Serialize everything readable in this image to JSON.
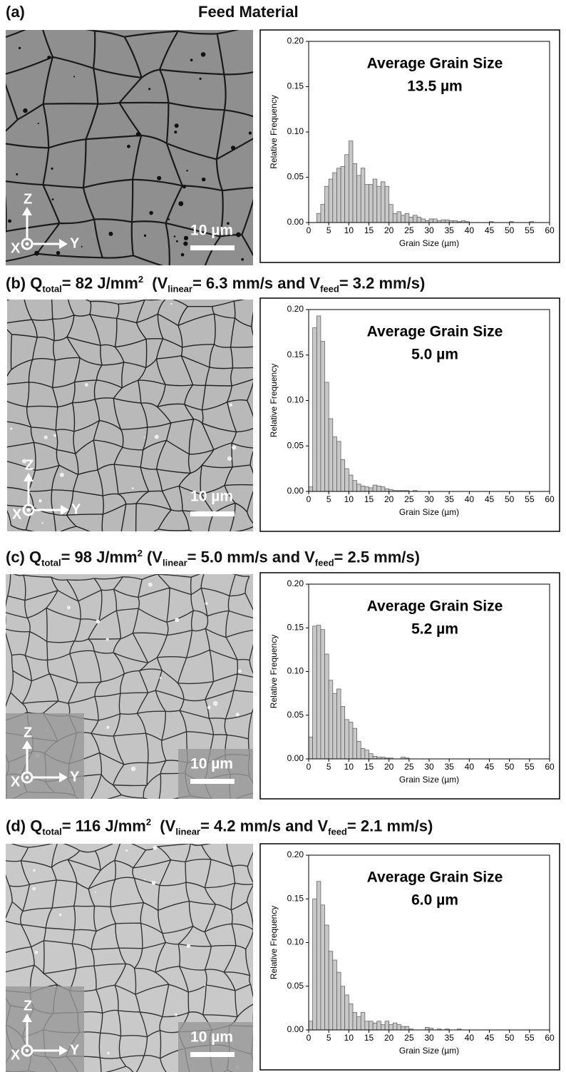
{
  "panels": [
    {
      "label": "(a)",
      "title": "Feed Material",
      "micrograph": {
        "axes": [
          "Z",
          "X",
          "Y"
        ],
        "scale_bar": "10 µm"
      }
    },
    {
      "label": "(b)",
      "heading": [
        {
          "text": "Q"
        },
        {
          "text": "total",
          "sub": true
        },
        {
          "text": "= 82 J/mm"
        },
        {
          "text": "2",
          "sup": true
        },
        {
          "text": "  (V"
        },
        {
          "text": "linear",
          "sub": true
        },
        {
          "text": "= 6.3 mm/s and V"
        },
        {
          "text": "feed",
          "sub": true
        },
        {
          "text": "= 3.2 mm/s)"
        }
      ],
      "micrograph": {
        "axes": [
          "Z",
          "X",
          "Y"
        ],
        "scale_bar": "10 µm"
      }
    },
    {
      "label": "(c)",
      "heading": [
        {
          "text": "Q"
        },
        {
          "text": "total",
          "sub": true
        },
        {
          "text": "= 98 J/mm"
        },
        {
          "text": "2",
          "sup": true
        },
        {
          "text": " (V"
        },
        {
          "text": "linear",
          "sub": true
        },
        {
          "text": "= 5.0 mm/s and V"
        },
        {
          "text": "feed",
          "sub": true
        },
        {
          "text": "= 2.5 mm/s)"
        }
      ],
      "micrograph": {
        "axes": [
          "Z",
          "X",
          "Y"
        ],
        "scale_bar": "10 µm"
      }
    },
    {
      "label": "(d)",
      "heading": [
        {
          "text": "Q"
        },
        {
          "text": "total",
          "sub": true
        },
        {
          "text": "= 116 J/mm"
        },
        {
          "text": "2",
          "sup": true
        },
        {
          "text": "  (V"
        },
        {
          "text": "linear",
          "sub": true
        },
        {
          "text": "= 4.2 mm/s and V"
        },
        {
          "text": "feed",
          "sub": true
        },
        {
          "text": "= 2.1 mm/s)"
        }
      ],
      "micrograph": {
        "axes": [
          "Z",
          "X",
          "Y"
        ],
        "scale_bar": "10 µm"
      }
    }
  ],
  "chart_data": [
    {
      "type": "histogram",
      "annotations": [
        "Average Grain Size",
        "13.5 µm"
      ],
      "x_label": "Grain Size (µm)",
      "y_label": "Relative Frequency",
      "color": "#c8c8c8",
      "bins": [
        0,
        1,
        2,
        3,
        4,
        5,
        6,
        7,
        8,
        9,
        10,
        11,
        12,
        13,
        14,
        15,
        16,
        17,
        18,
        19,
        20,
        21,
        22,
        23,
        24,
        25,
        26,
        27,
        28,
        29,
        30,
        31,
        32,
        33,
        34,
        35,
        36,
        37,
        38,
        39,
        40,
        41,
        42,
        43,
        44,
        45,
        46,
        47,
        48,
        49,
        50,
        51,
        52,
        53,
        54,
        55,
        56
      ],
      "counts": [
        0,
        0,
        0.01,
        0.02,
        0.04,
        0.048,
        0.055,
        0.06,
        0.062,
        0.075,
        0.09,
        0.065,
        0.052,
        0.06,
        0.042,
        0.042,
        0.048,
        0.04,
        0.045,
        0.04,
        0.02,
        0.01,
        0.012,
        0.008,
        0.01,
        0.006,
        0.008,
        0.006,
        0.004,
        0.002,
        0.004,
        0.004,
        0.002,
        0.003,
        0.003,
        0.002,
        0.002,
        0.001,
        0.002,
        0.001,
        0,
        0,
        0,
        0,
        0,
        0.001,
        0,
        0,
        0,
        0,
        0.001,
        0,
        0,
        0,
        0,
        0.001
      ],
      "xlim": [
        0,
        60
      ],
      "xticks": [
        0,
        5,
        10,
        15,
        20,
        25,
        30,
        35,
        40,
        45,
        50,
        55,
        60
      ],
      "ylim": [
        0,
        0.2
      ],
      "yticks": [
        {
          "value": 0,
          "label": "0.00"
        },
        {
          "value": 0.05,
          "label": "0.05"
        },
        {
          "value": 0.1,
          "label": "0.10"
        },
        {
          "value": 0.15,
          "label": "0.15"
        },
        {
          "value": 0.2,
          "label": "0.20"
        }
      ]
    },
    {
      "type": "histogram",
      "annotations": [
        "Average Grain Size",
        "5.0 µm"
      ],
      "x_label": "Grain Size (µm)",
      "y_label": "Relative Frequency",
      "color": "#c8c8c8",
      "bins": [
        0,
        1,
        2,
        3,
        4,
        5,
        6,
        7,
        8,
        9,
        10,
        11,
        12,
        13,
        14,
        15,
        16,
        17,
        18,
        19,
        20,
        21,
        22,
        23,
        24,
        25,
        26,
        27
      ],
      "counts": [
        0.005,
        0.18,
        0.193,
        0.165,
        0.12,
        0.08,
        0.06,
        0.055,
        0.035,
        0.025,
        0.018,
        0.012,
        0.008,
        0.006,
        0.005,
        0.004,
        0.007,
        0.006,
        0.005,
        0.003,
        0.002,
        0.001,
        0.001,
        0.001,
        0.001,
        0,
        0.001
      ],
      "xlim": [
        0,
        60
      ],
      "xticks": [
        0,
        5,
        10,
        15,
        20,
        25,
        30,
        35,
        40,
        45,
        50,
        55,
        60
      ],
      "ylim": [
        0,
        0.2
      ],
      "yticks": [
        {
          "value": 0,
          "label": "0.00"
        },
        {
          "value": 0.05,
          "label": "0.05"
        },
        {
          "value": 0.1,
          "label": "0.10"
        },
        {
          "value": 0.15,
          "label": "0.15"
        },
        {
          "value": 0.2,
          "label": "0.20"
        }
      ]
    },
    {
      "type": "histogram",
      "annotations": [
        "Average Grain Size",
        "5.2 µm"
      ],
      "x_label": "Grain Size (µm)",
      "y_label": "Relative Frequency",
      "color": "#c8c8c8",
      "bins": [
        0,
        1,
        2,
        3,
        4,
        5,
        6,
        7,
        8,
        9,
        10,
        11,
        12,
        13,
        14,
        15,
        16,
        17,
        18,
        19,
        20,
        21,
        22,
        23,
        24,
        25
      ],
      "counts": [
        0.025,
        0.152,
        0.153,
        0.148,
        0.12,
        0.09,
        0.075,
        0.08,
        0.06,
        0.045,
        0.042,
        0.035,
        0.02,
        0.012,
        0.01,
        0.006,
        0.003,
        0.002,
        0.002,
        0.001,
        0.001,
        0,
        0,
        0.002,
        0.001
      ],
      "xlim": [
        0,
        60
      ],
      "xticks": [
        0,
        5,
        10,
        15,
        20,
        25,
        30,
        35,
        40,
        45,
        50,
        55,
        60
      ],
      "ylim": [
        0,
        0.2
      ],
      "yticks": [
        {
          "value": 0,
          "label": "0.00"
        },
        {
          "value": 0.05,
          "label": "0.05"
        },
        {
          "value": 0.1,
          "label": "0.10"
        },
        {
          "value": 0.15,
          "label": "0.15"
        },
        {
          "value": 0.2,
          "label": "0.20"
        }
      ]
    },
    {
      "type": "histogram",
      "annotations": [
        "Average Grain Size",
        "6.0 µm"
      ],
      "x_label": "Grain Size (µm)",
      "y_label": "Relative Frequency",
      "color": "#c8c8c8",
      "bins": [
        0,
        1,
        2,
        3,
        4,
        5,
        6,
        7,
        8,
        9,
        10,
        11,
        12,
        13,
        14,
        15,
        16,
        17,
        18,
        19,
        20,
        21,
        22,
        23,
        24,
        25,
        26,
        27,
        28,
        29,
        30,
        31,
        32,
        33,
        34,
        35,
        36,
        37,
        38
      ],
      "counts": [
        0.01,
        0.15,
        0.17,
        0.143,
        0.12,
        0.09,
        0.08,
        0.066,
        0.05,
        0.04,
        0.03,
        0.02,
        0.015,
        0.02,
        0.01,
        0.01,
        0.008,
        0.01,
        0.006,
        0.01,
        0.006,
        0.008,
        0.006,
        0.004,
        0.004,
        0.001,
        0,
        0,
        0,
        0.003,
        0.002,
        0,
        0.001,
        0,
        0.001,
        0,
        0,
        0.001
      ],
      "xlim": [
        0,
        60
      ],
      "xticks": [
        0,
        5,
        10,
        15,
        20,
        25,
        30,
        35,
        40,
        45,
        50,
        55,
        60
      ],
      "ylim": [
        0,
        0.2
      ],
      "yticks": [
        {
          "value": 0,
          "label": "0.00"
        },
        {
          "value": 0.05,
          "label": "0.05"
        },
        {
          "value": 0.1,
          "label": "0.10"
        },
        {
          "value": 0.15,
          "label": "0.15"
        },
        {
          "value": 0.2,
          "label": "0.20"
        }
      ]
    }
  ]
}
